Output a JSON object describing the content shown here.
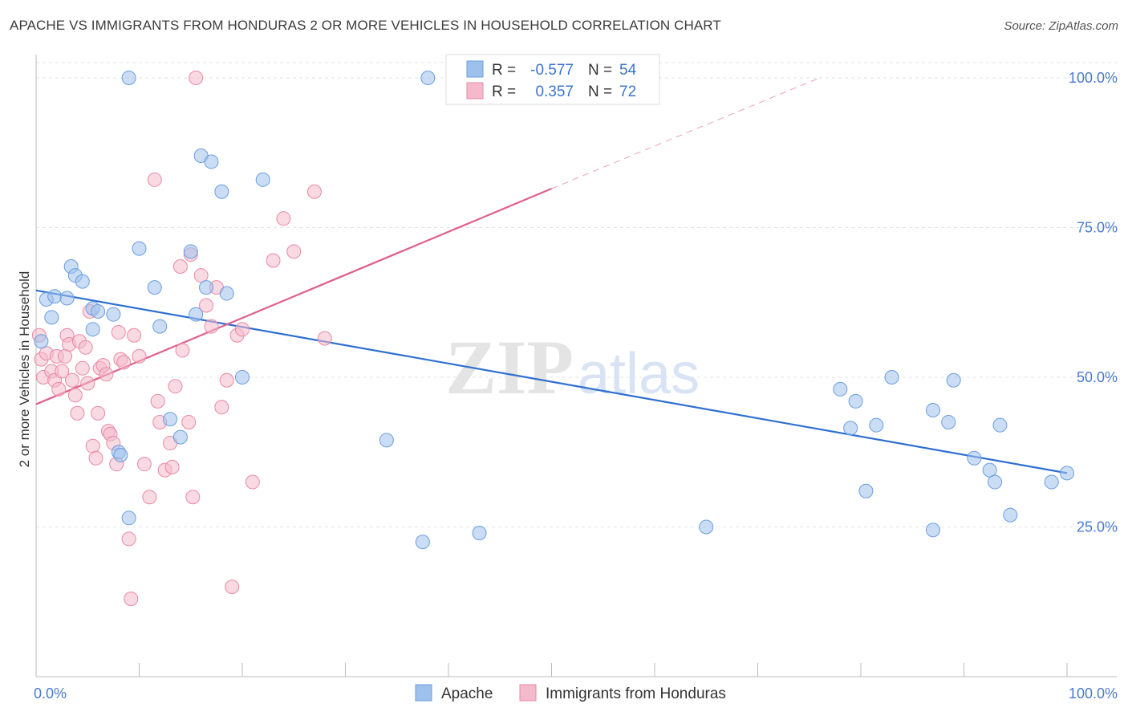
{
  "title": "APACHE VS IMMIGRANTS FROM HONDURAS 2 OR MORE VEHICLES IN HOUSEHOLD CORRELATION CHART",
  "source": "Source: ZipAtlas.com",
  "watermark": {
    "zip": "ZIP",
    "atlas": "atlas"
  },
  "chart_data": {
    "type": "scatter",
    "title": "APACHE VS IMMIGRANTS FROM HONDURAS 2 OR MORE VEHICLES IN HOUSEHOLD CORRELATION CHART",
    "xlabel": "",
    "ylabel": "2 or more Vehicles in Household",
    "xlim": [
      0,
      100
    ],
    "ylim": [
      0,
      100
    ],
    "x_tick_labels": [
      "0.0%",
      "100.0%"
    ],
    "y_ticks": [
      {
        "value": 25,
        "label": "25.0%"
      },
      {
        "value": 50,
        "label": "50.0%"
      },
      {
        "value": 75,
        "label": "75.0%"
      },
      {
        "value": 100,
        "label": "100.0%"
      }
    ],
    "grid": true,
    "legend_placement": "top-center",
    "series": [
      {
        "name": "Apache",
        "color": "#9ec1ec",
        "edge": "#6a9ee0",
        "line_color": "#2f6fd0",
        "R": "-0.577",
        "N": "54",
        "trend": {
          "x0": 0,
          "y0": 64.5,
          "x1": 100,
          "y1": 34.0
        },
        "points": [
          [
            0.5,
            56
          ],
          [
            1,
            63
          ],
          [
            1.5,
            60
          ],
          [
            1.8,
            63.5
          ],
          [
            3,
            63.2
          ],
          [
            3.4,
            68.5
          ],
          [
            3.8,
            67
          ],
          [
            4.5,
            66
          ],
          [
            5.5,
            61.5
          ],
          [
            5.5,
            58
          ],
          [
            6,
            61
          ],
          [
            7.5,
            60.5
          ],
          [
            8,
            37.5
          ],
          [
            8.2,
            37
          ],
          [
            9,
            26.5
          ],
          [
            9,
            100
          ],
          [
            10,
            71.5
          ],
          [
            11.5,
            65
          ],
          [
            12,
            58.5
          ],
          [
            13,
            43
          ],
          [
            14,
            40
          ],
          [
            15,
            71
          ],
          [
            15.5,
            60.5
          ],
          [
            16,
            87
          ],
          [
            16.5,
            65
          ],
          [
            17,
            86
          ],
          [
            18,
            81
          ],
          [
            18.5,
            64
          ],
          [
            20,
            50
          ],
          [
            22,
            83
          ],
          [
            34,
            39.5
          ],
          [
            37.5,
            22.5
          ],
          [
            38,
            100
          ],
          [
            43,
            24
          ],
          [
            65,
            25
          ],
          [
            78,
            48
          ],
          [
            79,
            41.5
          ],
          [
            79.5,
            46
          ],
          [
            80.5,
            31
          ],
          [
            81.5,
            42
          ],
          [
            83,
            50
          ],
          [
            87,
            44.5
          ],
          [
            87,
            24.5
          ],
          [
            88.5,
            42.5
          ],
          [
            89,
            49.5
          ],
          [
            91,
            36.5
          ],
          [
            92.5,
            34.5
          ],
          [
            93,
            32.5
          ],
          [
            93.5,
            42
          ],
          [
            94.5,
            27
          ],
          [
            98.5,
            32.5
          ],
          [
            100,
            34
          ]
        ]
      },
      {
        "name": "Immigrants from Honduras",
        "color": "#f4b9cb",
        "edge": "#e88aa6",
        "line_color": "#e0608a",
        "R": "0.357",
        "N": "72",
        "trend": {
          "x0": 0,
          "y0": 45.5,
          "x1": 50,
          "y1": 81.5,
          "dash_x1": 76,
          "dash_y1": 100
        },
        "points": [
          [
            0.3,
            57
          ],
          [
            0.5,
            53
          ],
          [
            0.7,
            50
          ],
          [
            1,
            54
          ],
          [
            1.5,
            51
          ],
          [
            1.8,
            49.5
          ],
          [
            2,
            53.5
          ],
          [
            2.2,
            48
          ],
          [
            2.5,
            51
          ],
          [
            2.8,
            53.5
          ],
          [
            3,
            57
          ],
          [
            3.2,
            55.5
          ],
          [
            3.5,
            49.5
          ],
          [
            3.8,
            47
          ],
          [
            4,
            44
          ],
          [
            4.2,
            56
          ],
          [
            4.5,
            51.5
          ],
          [
            4.8,
            55
          ],
          [
            5,
            49
          ],
          [
            5.2,
            61
          ],
          [
            5.5,
            38.5
          ],
          [
            5.8,
            36.5
          ],
          [
            6,
            44
          ],
          [
            6.2,
            51.5
          ],
          [
            6.5,
            52
          ],
          [
            6.8,
            50.5
          ],
          [
            7,
            41
          ],
          [
            7.2,
            40.5
          ],
          [
            7.5,
            39
          ],
          [
            7.8,
            35.5
          ],
          [
            8,
            57.5
          ],
          [
            8.2,
            53
          ],
          [
            8.5,
            52.5
          ],
          [
            9,
            23
          ],
          [
            9.2,
            13
          ],
          [
            9.5,
            57
          ],
          [
            10,
            53.5
          ],
          [
            10.5,
            35.5
          ],
          [
            11,
            30
          ],
          [
            11.5,
            83
          ],
          [
            11.8,
            46
          ],
          [
            12,
            42.5
          ],
          [
            12.5,
            34.5
          ],
          [
            13,
            39
          ],
          [
            13.2,
            35
          ],
          [
            13.5,
            48.5
          ],
          [
            14,
            68.5
          ],
          [
            14.2,
            54.5
          ],
          [
            14.8,
            42.5
          ],
          [
            15,
            70.5
          ],
          [
            15.2,
            30
          ],
          [
            15.5,
            100
          ],
          [
            16,
            67
          ],
          [
            16.5,
            62
          ],
          [
            17,
            58.5
          ],
          [
            17.5,
            65
          ],
          [
            18,
            45
          ],
          [
            18.5,
            49.5
          ],
          [
            19,
            15
          ],
          [
            19.5,
            57
          ],
          [
            20,
            58
          ],
          [
            21,
            32.5
          ],
          [
            23,
            69.5
          ],
          [
            24,
            76.5
          ],
          [
            25,
            71
          ],
          [
            27,
            81
          ],
          [
            28,
            56.5
          ],
          [
            41.5,
            99
          ]
        ]
      }
    ]
  },
  "legend": {
    "r_label": "R =",
    "n_label": "N =",
    "rows": [
      {
        "r": "-0.577",
        "n": "54"
      },
      {
        "r": "0.357",
        "n": "72"
      }
    ]
  },
  "bottom_legend": [
    "Apache",
    "Immigrants from Honduras"
  ]
}
